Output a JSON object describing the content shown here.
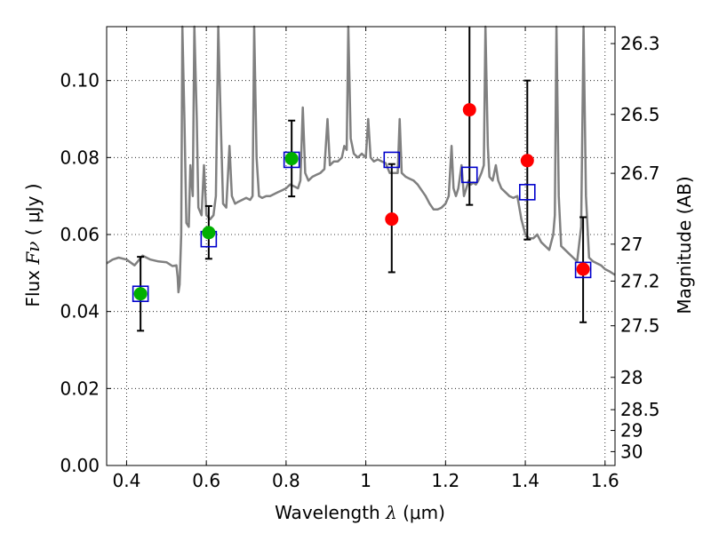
{
  "chart_data": {
    "type": "scatter",
    "xlabel_prefix": "Wavelength",
    "xlabel_symbol": "λ",
    "xlabel_unit": "(μm)",
    "ylabel_prefix": "Flux",
    "ylabel_symbol": "Fν",
    "ylabel_unit": "( μJy )",
    "y2label": "Magnitude (AB)",
    "xlim": [
      0.35,
      1.625
    ],
    "ylim": [
      0.0,
      0.114
    ],
    "x_ticks": [
      0.4,
      0.6,
      0.8,
      1.0,
      1.2,
      1.4,
      1.6
    ],
    "x_tick_labels": [
      "0.4",
      "0.6",
      "0.8",
      "1",
      "1.2",
      "1.4",
      "1.6"
    ],
    "y_ticks": [
      0.0,
      0.02,
      0.04,
      0.06,
      0.08,
      0.1
    ],
    "y_tick_labels": [
      "0.00",
      "0.02",
      "0.04",
      "0.06",
      "0.08",
      "0.10"
    ],
    "mag_ticks": [
      {
        "label": "26.3",
        "flux": 0.1096
      },
      {
        "label": "26.5",
        "flux": 0.0912
      },
      {
        "label": "26.7",
        "flux": 0.0759
      },
      {
        "label": "27",
        "flux": 0.0575
      },
      {
        "label": "27.2",
        "flux": 0.0479
      },
      {
        "label": "27.5",
        "flux": 0.0363
      },
      {
        "label": "28",
        "flux": 0.0229
      },
      {
        "label": "28.5",
        "flux": 0.0145
      },
      {
        "label": "29",
        "flux": 0.0091
      },
      {
        "label": "30",
        "flux": 0.0036
      }
    ],
    "grid": true,
    "colors": {
      "spectrum": "#808080",
      "green": "#00b000",
      "red": "#ff0000",
      "blue": "#0000cc",
      "errorbar": "#000000"
    },
    "observed": [
      {
        "x": 0.435,
        "y": 0.0446,
        "color": "green",
        "err_lo": 0.035,
        "err_hi": 0.0542
      },
      {
        "x": 0.606,
        "y": 0.0605,
        "color": "green",
        "err_lo": 0.0537,
        "err_hi": 0.0674
      },
      {
        "x": 0.814,
        "y": 0.0797,
        "color": "green",
        "err_lo": 0.0699,
        "err_hi": 0.0896
      },
      {
        "x": 1.065,
        "y": 0.064,
        "color": "red",
        "err_lo": 0.0502,
        "err_hi": 0.0783
      },
      {
        "x": 1.26,
        "y": 0.0924,
        "color": "red",
        "err_lo": 0.0677,
        "err_hi": 0.114
      },
      {
        "x": 1.405,
        "y": 0.0792,
        "color": "red",
        "err_lo": 0.0587,
        "err_hi": 0.1
      },
      {
        "x": 1.545,
        "y": 0.051,
        "color": "red",
        "err_lo": 0.0372,
        "err_hi": 0.0645
      }
    ],
    "model_squares": [
      {
        "x": 0.435,
        "y": 0.0446
      },
      {
        "x": 0.606,
        "y": 0.0588
      },
      {
        "x": 0.814,
        "y": 0.0794
      },
      {
        "x": 1.065,
        "y": 0.0794
      },
      {
        "x": 1.26,
        "y": 0.0755
      },
      {
        "x": 1.405,
        "y": 0.071
      },
      {
        "x": 1.545,
        "y": 0.0508
      }
    ],
    "spectrum": [
      [
        0.35,
        0.0525
      ],
      [
        0.365,
        0.0535
      ],
      [
        0.38,
        0.054
      ],
      [
        0.4,
        0.0535
      ],
      [
        0.42,
        0.052
      ],
      [
        0.44,
        0.0545
      ],
      [
        0.46,
        0.0535
      ],
      [
        0.48,
        0.053
      ],
      [
        0.5,
        0.0528
      ],
      [
        0.515,
        0.0518
      ],
      [
        0.525,
        0.052
      ],
      [
        0.528,
        0.049
      ],
      [
        0.53,
        0.045
      ],
      [
        0.533,
        0.047
      ],
      [
        0.537,
        0.06
      ],
      [
        0.54,
        0.114
      ],
      [
        0.545,
        0.09
      ],
      [
        0.55,
        0.063
      ],
      [
        0.556,
        0.062
      ],
      [
        0.56,
        0.078
      ],
      [
        0.566,
        0.07
      ],
      [
        0.57,
        0.114
      ],
      [
        0.576,
        0.09
      ],
      [
        0.58,
        0.067
      ],
      [
        0.588,
        0.065
      ],
      [
        0.594,
        0.078
      ],
      [
        0.6,
        0.065
      ],
      [
        0.61,
        0.064
      ],
      [
        0.618,
        0.065
      ],
      [
        0.624,
        0.07
      ],
      [
        0.63,
        0.114
      ],
      [
        0.636,
        0.09
      ],
      [
        0.642,
        0.068
      ],
      [
        0.65,
        0.067
      ],
      [
        0.658,
        0.083
      ],
      [
        0.664,
        0.07
      ],
      [
        0.672,
        0.068
      ],
      [
        0.68,
        0.0685
      ],
      [
        0.69,
        0.069
      ],
      [
        0.7,
        0.0695
      ],
      [
        0.71,
        0.069
      ],
      [
        0.716,
        0.07
      ],
      [
        0.72,
        0.114
      ],
      [
        0.726,
        0.08
      ],
      [
        0.732,
        0.07
      ],
      [
        0.74,
        0.0695
      ],
      [
        0.75,
        0.07
      ],
      [
        0.76,
        0.07
      ],
      [
        0.77,
        0.0705
      ],
      [
        0.78,
        0.071
      ],
      [
        0.79,
        0.0715
      ],
      [
        0.8,
        0.072
      ],
      [
        0.81,
        0.073
      ],
      [
        0.82,
        0.0725
      ],
      [
        0.83,
        0.072
      ],
      [
        0.836,
        0.074
      ],
      [
        0.842,
        0.093
      ],
      [
        0.848,
        0.076
      ],
      [
        0.856,
        0.074
      ],
      [
        0.866,
        0.075
      ],
      [
        0.876,
        0.0755
      ],
      [
        0.886,
        0.076
      ],
      [
        0.896,
        0.077
      ],
      [
        0.904,
        0.09
      ],
      [
        0.91,
        0.078
      ],
      [
        0.92,
        0.079
      ],
      [
        0.93,
        0.079
      ],
      [
        0.94,
        0.08
      ],
      [
        0.946,
        0.083
      ],
      [
        0.952,
        0.082
      ],
      [
        0.956,
        0.114
      ],
      [
        0.962,
        0.085
      ],
      [
        0.97,
        0.081
      ],
      [
        0.98,
        0.08
      ],
      [
        0.99,
        0.081
      ],
      [
        1.0,
        0.08
      ],
      [
        1.006,
        0.09
      ],
      [
        1.012,
        0.08
      ],
      [
        1.02,
        0.079
      ],
      [
        1.03,
        0.0795
      ],
      [
        1.04,
        0.079
      ],
      [
        1.05,
        0.0785
      ],
      [
        1.06,
        0.076
      ],
      [
        1.07,
        0.076
      ],
      [
        1.08,
        0.076
      ],
      [
        1.085,
        0.09
      ],
      [
        1.09,
        0.076
      ],
      [
        1.1,
        0.075
      ],
      [
        1.11,
        0.0745
      ],
      [
        1.12,
        0.074
      ],
      [
        1.13,
        0.073
      ],
      [
        1.14,
        0.0715
      ],
      [
        1.15,
        0.07
      ],
      [
        1.16,
        0.068
      ],
      [
        1.17,
        0.0665
      ],
      [
        1.18,
        0.0665
      ],
      [
        1.19,
        0.067
      ],
      [
        1.2,
        0.068
      ],
      [
        1.208,
        0.07
      ],
      [
        1.215,
        0.083
      ],
      [
        1.22,
        0.072
      ],
      [
        1.226,
        0.07
      ],
      [
        1.232,
        0.072
      ],
      [
        1.24,
        0.078
      ],
      [
        1.246,
        0.07
      ],
      [
        1.252,
        0.072
      ],
      [
        1.258,
        0.074
      ],
      [
        1.264,
        0.073
      ],
      [
        1.27,
        0.0735
      ],
      [
        1.276,
        0.073
      ],
      [
        1.282,
        0.074
      ],
      [
        1.29,
        0.076
      ],
      [
        1.296,
        0.078
      ],
      [
        1.3,
        0.114
      ],
      [
        1.306,
        0.083
      ],
      [
        1.31,
        0.075
      ],
      [
        1.318,
        0.074
      ],
      [
        1.326,
        0.078
      ],
      [
        1.332,
        0.074
      ],
      [
        1.34,
        0.072
      ],
      [
        1.35,
        0.071
      ],
      [
        1.36,
        0.07
      ],
      [
        1.37,
        0.0695
      ],
      [
        1.38,
        0.07
      ],
      [
        1.39,
        0.064
      ],
      [
        1.4,
        0.06
      ],
      [
        1.41,
        0.059
      ],
      [
        1.42,
        0.059
      ],
      [
        1.43,
        0.06
      ],
      [
        1.44,
        0.058
      ],
      [
        1.45,
        0.057
      ],
      [
        1.46,
        0.056
      ],
      [
        1.47,
        0.06
      ],
      [
        1.474,
        0.065
      ],
      [
        1.478,
        0.114
      ],
      [
        1.484,
        0.07
      ],
      [
        1.49,
        0.057
      ],
      [
        1.5,
        0.056
      ],
      [
        1.51,
        0.055
      ],
      [
        1.52,
        0.054
      ],
      [
        1.53,
        0.053
      ],
      [
        1.54,
        0.062
      ],
      [
        1.546,
        0.114
      ],
      [
        1.552,
        0.07
      ],
      [
        1.56,
        0.054
      ],
      [
        1.57,
        0.053
      ],
      [
        1.58,
        0.0525
      ],
      [
        1.59,
        0.052
      ],
      [
        1.6,
        0.051
      ],
      [
        1.61,
        0.0505
      ],
      [
        1.625,
        0.0495
      ]
    ]
  }
}
